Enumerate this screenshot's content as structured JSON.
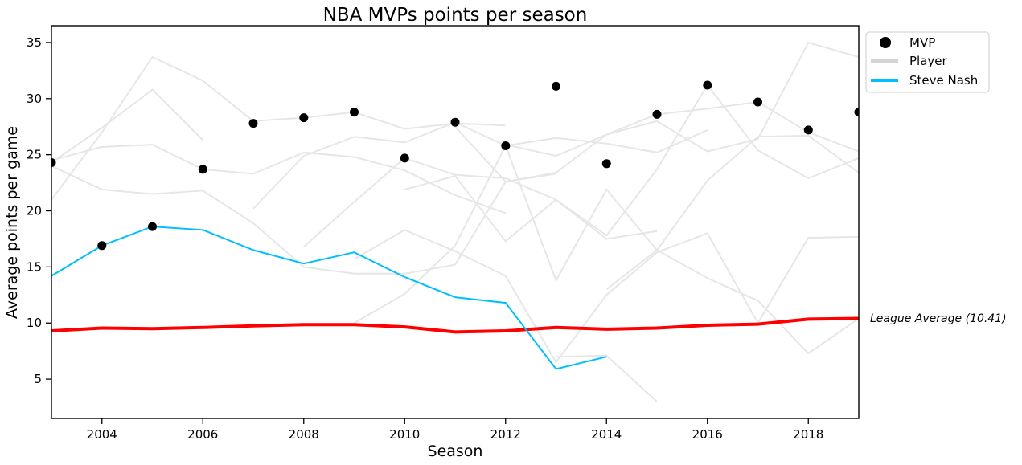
{
  "chart_data": {
    "type": "line",
    "title": "NBA MVPs points per season",
    "xlabel": "Season",
    "ylabel": "Average points per game",
    "xlim": [
      2003,
      2019
    ],
    "ylim": [
      1.5,
      36.5
    ],
    "xticks": [
      2004,
      2006,
      2008,
      2010,
      2012,
      2014,
      2016,
      2018
    ],
    "yticks": [
      5,
      10,
      15,
      20,
      25,
      30,
      35
    ],
    "legend": {
      "placement": "top-right-outside",
      "entries": [
        {
          "label": "MVP",
          "kind": "marker",
          "color": "#000000"
        },
        {
          "label": "Player",
          "kind": "line",
          "color": "#d3d3d3"
        },
        {
          "label": "Steve Nash",
          "kind": "line",
          "color": "#00bfff"
        }
      ]
    },
    "mvp": {
      "color": "#000000",
      "x": [
        2003,
        2004,
        2005,
        2006,
        2007,
        2008,
        2009,
        2010,
        2011,
        2012,
        2013,
        2014,
        2015,
        2016,
        2017,
        2018,
        2019
      ],
      "y": [
        24.3,
        16.9,
        18.6,
        23.7,
        27.8,
        28.3,
        28.8,
        24.7,
        27.9,
        25.8,
        31.1,
        24.2,
        28.6,
        31.2,
        29.7,
        27.2,
        28.8
      ]
    },
    "steve_nash": {
      "color": "#00bfff",
      "x": [
        2003,
        2004,
        2005,
        2006,
        2007,
        2008,
        2009,
        2010,
        2011,
        2012,
        2013,
        2014
      ],
      "y": [
        14.2,
        16.9,
        18.6,
        18.3,
        16.5,
        15.3,
        16.3,
        14.1,
        12.3,
        11.8,
        5.9,
        7.0
      ]
    },
    "league_average": {
      "color": "#ff0000",
      "annotation": "League Average (10.41)",
      "x": [
        2003,
        2004,
        2005,
        2006,
        2007,
        2008,
        2009,
        2010,
        2011,
        2012,
        2013,
        2014,
        2015,
        2016,
        2017,
        2018,
        2019
      ],
      "y": [
        9.3,
        9.55,
        9.5,
        9.6,
        9.75,
        9.85,
        9.85,
        9.65,
        9.2,
        9.3,
        9.6,
        9.45,
        9.55,
        9.8,
        9.9,
        10.35,
        10.41
      ]
    },
    "player_color": "#e6e6e6",
    "players": [
      {
        "x": [
          2003,
          2004,
          2005,
          2006
        ],
        "y": [
          24.3,
          27.4,
          30.8,
          26.3
        ]
      },
      {
        "x": [
          2003,
          2004,
          2005,
          2006,
          2007,
          2008,
          2009,
          2010,
          2011,
          2012
        ],
        "y": [
          21.0,
          27.0,
          33.7,
          31.6,
          28.0,
          28.3,
          28.8,
          27.3,
          27.8,
          27.6
        ]
      },
      {
        "x": [
          2003,
          2004,
          2005,
          2006,
          2007,
          2008,
          2009,
          2010,
          2011,
          2012,
          2013
        ],
        "y": [
          24.0,
          21.9,
          21.5,
          21.8,
          18.9,
          15.0,
          14.4,
          14.4,
          15.2,
          22.6,
          23.3
        ]
      },
      {
        "x": [
          2003,
          2004,
          2005,
          2006,
          2007,
          2008,
          2009,
          2010,
          2011,
          2012
        ],
        "y": [
          24.5,
          25.7,
          25.9,
          23.7,
          23.3,
          25.2,
          24.8,
          23.6,
          21.4,
          19.8
        ]
      },
      {
        "x": [
          2007,
          2008,
          2009,
          2010,
          2011,
          2012,
          2013,
          2014,
          2015,
          2016
        ],
        "y": [
          20.2,
          24.9,
          26.6,
          26.1,
          27.9,
          25.8,
          26.5,
          26.0,
          25.2,
          27.2
        ]
      },
      {
        "x": [
          2008,
          2009,
          2010,
          2011,
          2012,
          2013,
          2014,
          2015
        ],
        "y": [
          16.8,
          20.8,
          24.7,
          23.2,
          22.9,
          21.0,
          17.5,
          18.2
        ]
      },
      {
        "x": [
          2009,
          2010,
          2011,
          2012,
          2013,
          2014,
          2015,
          2016,
          2017,
          2018,
          2019
        ],
        "y": [
          15.7,
          18.3,
          16.4,
          14.2,
          6.5,
          12.5,
          16.3,
          18.0,
          10.0,
          17.6,
          17.7
        ]
      },
      {
        "x": [
          2009,
          2010,
          2011,
          2012,
          2013,
          2014,
          2015,
          2016,
          2017,
          2018,
          2019
        ],
        "y": [
          10.0,
          12.6,
          16.9,
          25.8,
          13.8,
          21.9,
          16.5,
          14.0,
          12.0,
          7.3,
          10.4
        ]
      },
      {
        "x": [
          2010,
          2011,
          2012,
          2013,
          2014,
          2015,
          2016,
          2017,
          2018,
          2019
        ],
        "y": [
          21.9,
          23.1,
          17.3,
          21.0,
          17.8,
          23.7,
          31.2,
          25.4,
          22.9,
          24.7
        ]
      },
      {
        "x": [
          2011,
          2012,
          2013,
          2014,
          2015,
          2016,
          2017,
          2018,
          2019
        ],
        "y": [
          27.5,
          22.6,
          23.4,
          26.8,
          28.0,
          25.3,
          26.4,
          35.0,
          33.7
        ]
      },
      {
        "x": [
          2012,
          2013,
          2014,
          2015,
          2016,
          2017,
          2018,
          2019
        ],
        "y": [
          25.9,
          24.9,
          26.8,
          28.6,
          29.1,
          29.7,
          27.0,
          25.3
        ]
      },
      {
        "x": [
          2013,
          2014,
          2015
        ],
        "y": [
          7.0,
          7.1,
          3.0
        ]
      },
      {
        "x": [
          2014,
          2015,
          2016,
          2017,
          2018,
          2019
        ],
        "y": [
          13.0,
          16.5,
          22.7,
          26.6,
          26.7,
          23.4
        ]
      }
    ]
  }
}
